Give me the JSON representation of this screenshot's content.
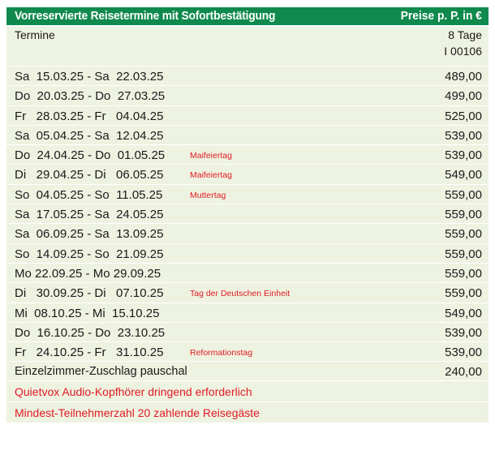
{
  "header": {
    "title": "Vorreservierte Reisetermine mit Sofortbestätigung",
    "price_note": "Preise p. P. in €"
  },
  "column_header": {
    "left": "Termine",
    "duration": "8 Tage",
    "code": "I 00106"
  },
  "rows": [
    {
      "dates": "Sa  15.03.25 - Sa  22.03.25",
      "note": "",
      "price": "489,00"
    },
    {
      "dates": "Do  20.03.25 - Do  27.03.25",
      "note": "",
      "price": "499,00"
    },
    {
      "dates": "Fr   28.03.25 - Fr   04.04.25",
      "note": "",
      "price": "525,00"
    },
    {
      "dates": "Sa  05.04.25 - Sa  12.04.25",
      "note": "",
      "price": "539,00"
    },
    {
      "dates": "Do  24.04.25 - Do  01.05.25",
      "note": "Maifeiertag",
      "price": "539,00"
    },
    {
      "dates": "Di   29.04.25 - Di   06.05.25",
      "note": "Maifeiertag",
      "price": "549,00"
    },
    {
      "dates": "So  04.05.25 - So  11.05.25",
      "note": "Muttertag",
      "price": "559,00"
    },
    {
      "dates": "Sa  17.05.25 - Sa  24.05.25",
      "note": "",
      "price": "559,00"
    },
    {
      "dates": "Sa  06.09.25 - Sa  13.09.25",
      "note": "",
      "price": "559,00"
    },
    {
      "dates": "So  14.09.25 - So  21.09.25",
      "note": "",
      "price": "559,00"
    },
    {
      "dates": "Mo 22.09.25 - Mo 29.09.25",
      "note": "",
      "price": "559,00"
    },
    {
      "dates": "Di   30.09.25 - Di   07.10.25",
      "note": "Tag der Deutschen Einheit",
      "price": "559,00"
    },
    {
      "dates": "Mi  08.10.25 - Mi  15.10.25",
      "note": "",
      "price": "549,00"
    },
    {
      "dates": "Do  16.10.25 - Do  23.10.25",
      "note": "",
      "price": "539,00"
    },
    {
      "dates": "Fr   24.10.25 - Fr   31.10.25",
      "note": "Reformationstag",
      "price": "539,00"
    }
  ],
  "surcharge": {
    "label": "Einzelzimmer-Zuschlag pauschal",
    "price": "240,00"
  },
  "notices": [
    "Quietvox Audio-Kopfhörer dringend erforderlich",
    "Mindest-Teilnehmerzahl 20 zahlende Reisegäste"
  ],
  "colors": {
    "header_green": "#0f8a4c",
    "row_background": "#eef2e1",
    "highlight_red": "#e01b24"
  }
}
